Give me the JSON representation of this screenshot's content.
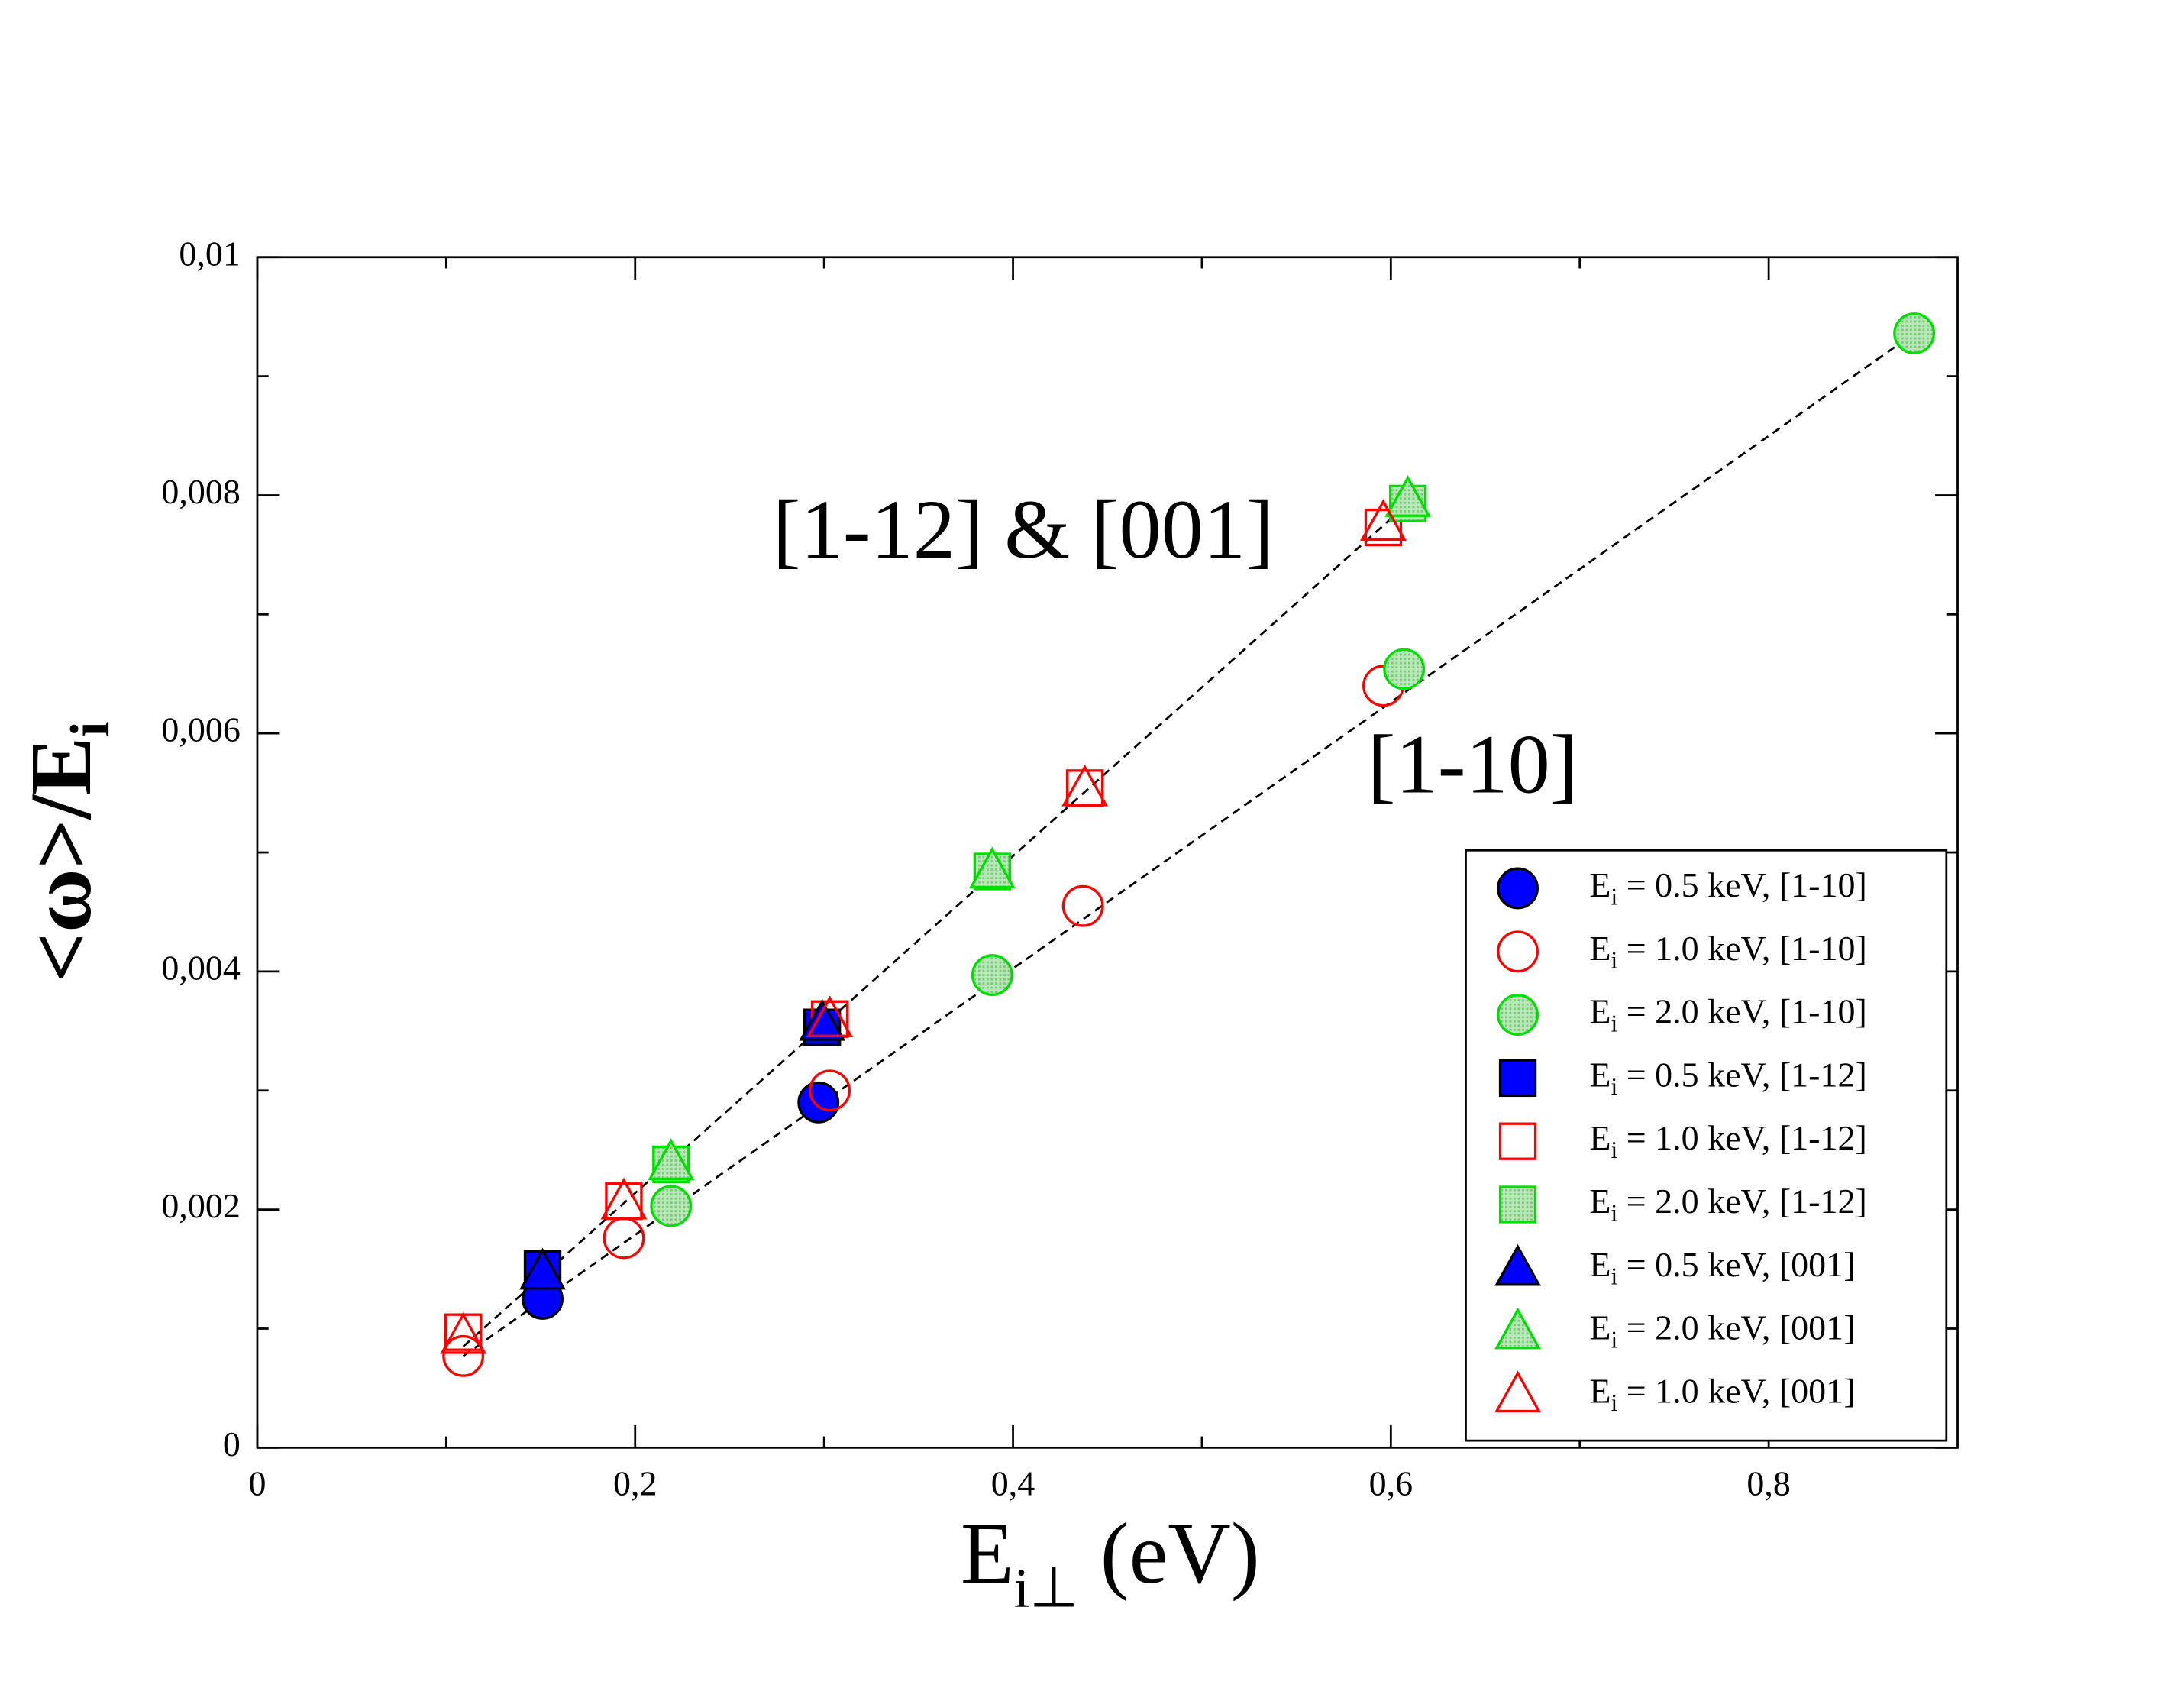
{
  "chart_data": {
    "type": "scatter",
    "xlabel": {
      "main": "E",
      "sub": "i⊥",
      "rest": " (eV)"
    },
    "ylabel": {
      "main": "<ω>/E",
      "sub": "i"
    },
    "xlim": [
      0,
      0.9
    ],
    "ylim": [
      0,
      0.01
    ],
    "xticks": [
      0,
      {
        "value": 0.2,
        "label": "0,2"
      },
      {
        "value": 0.4,
        "label": "0,4"
      },
      {
        "value": 0.6,
        "label": "0,6"
      },
      {
        "value": 0.8,
        "label": "0,8"
      }
    ],
    "xticks_minor": [
      0.1,
      0.3,
      0.5,
      0.7
    ],
    "yticks": [
      0,
      {
        "value": 0.002,
        "label": "0,002"
      },
      {
        "value": 0.004,
        "label": "0,004"
      },
      {
        "value": 0.006,
        "label": "0,006"
      },
      {
        "value": 0.008,
        "label": "0,008"
      },
      {
        "value": 0.01,
        "label": "0,01"
      }
    ],
    "yticks_minor": [
      0.001,
      0.003,
      0.005,
      0.007,
      0.009
    ],
    "annotations": [
      "[1-12] & [001]",
      "[1-10]"
    ],
    "fit_lines": [
      {
        "x": [
          0.109,
          0.877
        ],
        "y": [
          0.00077,
          0.00936
        ]
      },
      {
        "x": [
          0.109,
          0.609
        ],
        "y": [
          0.00085,
          0.00793
        ]
      }
    ],
    "legend": "lower right",
    "series": [
      {
        "name": "Ei = 0.5 keV, [1-10]",
        "marker": "circle",
        "fill": "solid",
        "color": "#0000ff",
        "x": [
          0.151,
          0.297
        ],
        "values": [
          0.00125,
          0.0029
        ]
      },
      {
        "name": "Ei = 1.0 keV, [1-10]",
        "marker": "circle",
        "fill": "none",
        "color": "#ff0000",
        "x": [
          0.109,
          0.194,
          0.303,
          0.437,
          0.596
        ],
        "values": [
          0.00077,
          0.00176,
          0.003,
          0.00455,
          0.0064
        ]
      },
      {
        "name": "Ei = 2.0 keV, [1-10]",
        "marker": "circle",
        "fill": "pattern",
        "color": "#00dd00",
        "x": [
          0.219,
          0.389,
          0.607,
          0.877
        ],
        "values": [
          0.00203,
          0.00397,
          0.00654,
          0.00936
        ]
      },
      {
        "name": "Ei = 0.5 keV, [1-12]",
        "marker": "square",
        "fill": "solid",
        "color": "#0000ff",
        "x": [
          0.151,
          0.299
        ],
        "values": [
          0.0015,
          0.00353
        ]
      },
      {
        "name": "Ei = 1.0 keV, [1-12]",
        "marker": "square",
        "fill": "none",
        "color": "#ff0000",
        "x": [
          0.109,
          0.194,
          0.303,
          0.438,
          0.596
        ],
        "values": [
          0.00097,
          0.00207,
          0.0036,
          0.00554,
          0.00773
        ]
      },
      {
        "name": "Ei = 2.0 keV, [1-12]",
        "marker": "square",
        "fill": "pattern",
        "color": "#00dd00",
        "x": [
          0.219,
          0.389,
          0.609
        ],
        "values": [
          0.00238,
          0.00484,
          0.00793
        ]
      },
      {
        "name": "Ei = 0.5 keV, [001]",
        "marker": "triangle",
        "fill": "solid",
        "color": "#0000ff",
        "x": [
          0.151,
          0.299
        ],
        "values": [
          0.00148,
          0.00357
        ]
      },
      {
        "name": "Ei = 2.0 keV, [001]",
        "marker": "triangle",
        "fill": "pattern",
        "color": "#00dd00",
        "x": [
          0.219,
          0.389,
          0.609
        ],
        "values": [
          0.0024,
          0.00485,
          0.00797
        ]
      },
      {
        "name": "Ei = 1.0 keV, [001]",
        "marker": "triangle",
        "fill": "none",
        "color": "#ff0000",
        "x": [
          0.109,
          0.194,
          0.303,
          0.438,
          0.596
        ],
        "values": [
          0.00094,
          0.00207,
          0.0036,
          0.00554,
          0.00777
        ]
      }
    ]
  }
}
